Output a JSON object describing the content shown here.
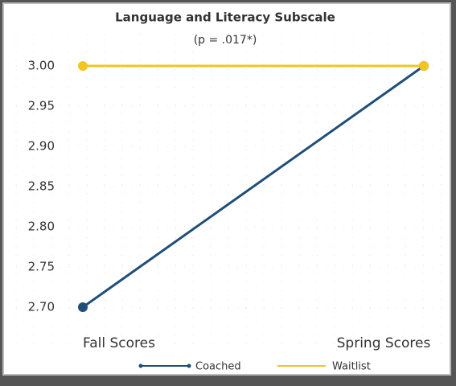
{
  "chart_data": {
    "type": "line",
    "title": "Language and Literacy Subscale",
    "subtitle": "(p = .017*)",
    "categories": [
      "Fall Scores",
      "Spring Scores"
    ],
    "series": [
      {
        "name": "Coached",
        "color": "#1f4e79",
        "values": [
          2.7,
          3.0
        ]
      },
      {
        "name": "Waitlist",
        "color": "#f2c523",
        "values": [
          3.0,
          3.0
        ]
      }
    ],
    "ylim": [
      2.68,
      3.02
    ],
    "yticks": [
      {
        "value": 2.7,
        "label": "2.70"
      },
      2.75,
      {
        "value": 2.8,
        "label": "2.80"
      },
      2.85,
      {
        "value": 2.9,
        "label": "2.90"
      },
      2.95,
      {
        "value": 3.0,
        "label": "3.00"
      }
    ],
    "grid": true,
    "legend": "bottom"
  }
}
